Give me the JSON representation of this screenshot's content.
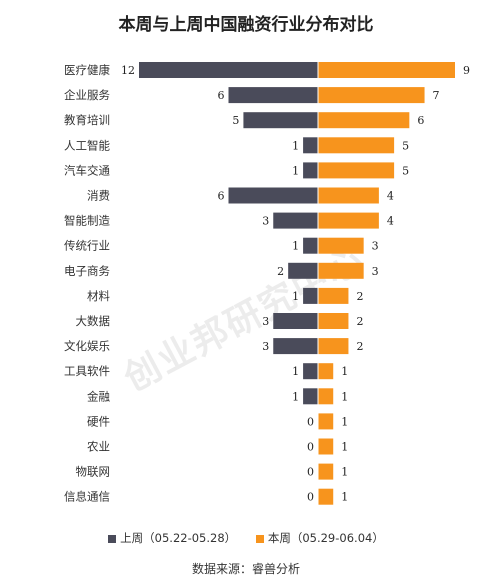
{
  "chart_data": {
    "type": "bar",
    "orientation": "horizontal-diverging",
    "title": "本周与上周中国融资行业分布对比",
    "categories": [
      "医疗健康",
      "企业服务",
      "教育培训",
      "人工智能",
      "汽车交通",
      "消费",
      "智能制造",
      "传统行业",
      "电子商务",
      "材料",
      "大数据",
      "文化娱乐",
      "工具软件",
      "金融",
      "硬件",
      "农业",
      "物联网",
      "信息通信"
    ],
    "series": [
      {
        "name": "上周（05.22-05.28）",
        "color": "#4a4b5a",
        "direction": "left",
        "values": [
          12,
          6,
          5,
          1,
          1,
          6,
          3,
          1,
          2,
          1,
          3,
          3,
          1,
          1,
          0,
          0,
          0,
          0
        ]
      },
      {
        "name": "本周（05.29-06.04）",
        "color": "#f7941d",
        "direction": "right",
        "values": [
          9,
          7,
          6,
          5,
          5,
          4,
          4,
          3,
          3,
          2,
          2,
          2,
          1,
          1,
          1,
          1,
          1,
          1
        ]
      }
    ],
    "legend_position": "bottom",
    "grid": false
  },
  "watermark": "创业邦研究中心",
  "source": "数据来源：睿兽分析"
}
